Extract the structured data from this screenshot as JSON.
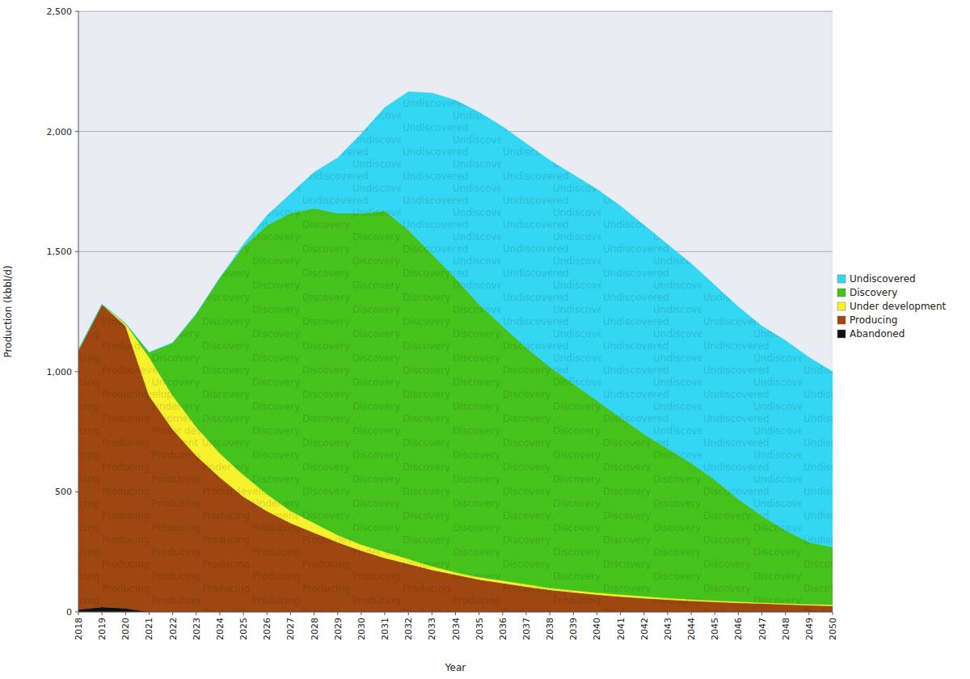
{
  "chart_data": {
    "type": "area",
    "stacked": true,
    "grid": true,
    "legend": "right",
    "x_label": "Year",
    "y_label": "Production (kbbl/d)",
    "x": [
      2018,
      2019,
      2020,
      2021,
      2022,
      2023,
      2024,
      2025,
      2026,
      2027,
      2028,
      2029,
      2030,
      2031,
      2032,
      2033,
      2034,
      2035,
      2036,
      2037,
      2038,
      2039,
      2040,
      2041,
      2042,
      2043,
      2044,
      2045,
      2046,
      2047,
      2048,
      2049,
      2050
    ],
    "xlim": [
      2018,
      2050
    ],
    "xticks": [
      2018,
      2019,
      2020,
      2021,
      2022,
      2023,
      2024,
      2025,
      2026,
      2027,
      2028,
      2029,
      2030,
      2031,
      2032,
      2033,
      2034,
      2035,
      2036,
      2037,
      2038,
      2039,
      2040,
      2041,
      2042,
      2043,
      2044,
      2045,
      2046,
      2047,
      2048,
      2049,
      2050
    ],
    "ylim": [
      0,
      2500
    ],
    "yticks": [
      0,
      500,
      {
        "value": 1000,
        "label": "1,000"
      },
      {
        "value": 1500,
        "label": "1,500"
      },
      {
        "value": 2000,
        "label": "2,000"
      },
      {
        "value": 2500,
        "label": "2,500"
      }
    ],
    "series": [
      {
        "name": "Abandoned",
        "color": "#111111",
        "values": [
          10,
          20,
          15,
          0,
          0,
          0,
          0,
          0,
          0,
          0,
          0,
          0,
          0,
          0,
          0,
          0,
          0,
          0,
          0,
          0,
          0,
          0,
          0,
          0,
          0,
          0,
          0,
          0,
          0,
          0,
          0,
          0,
          0
        ]
      },
      {
        "name": "Producing",
        "color": "#9e4710",
        "values": [
          1080,
          1260,
          1175,
          900,
          760,
          650,
          560,
          480,
          420,
          370,
          330,
          290,
          255,
          225,
          200,
          175,
          155,
          135,
          120,
          105,
          92,
          82,
          72,
          64,
          57,
          51,
          46,
          42,
          38,
          35,
          31,
          28,
          25
        ]
      },
      {
        "name": "Under development",
        "color": "#f8f22c",
        "values": [
          0,
          0,
          10,
          160,
          140,
          120,
          100,
          90,
          70,
          50,
          40,
          30,
          25,
          25,
          20,
          15,
          10,
          10,
          10,
          10,
          8,
          8,
          8,
          8,
          8,
          7,
          6,
          5,
          5,
          4,
          4,
          4,
          5
        ]
      },
      {
        "name": "Discovery",
        "color": "#45c21c",
        "values": [
          0,
          0,
          0,
          20,
          220,
          470,
          730,
          950,
          1120,
          1240,
          1310,
          1340,
          1380,
          1420,
          1370,
          1300,
          1225,
          1135,
          1060,
          985,
          920,
          860,
          800,
          738,
          675,
          622,
          568,
          503,
          427,
          361,
          305,
          258,
          240
        ]
      },
      {
        "name": "Undiscovered",
        "color": "#33d7f3",
        "values": [
          0,
          0,
          0,
          0,
          0,
          0,
          0,
          10,
          40,
          80,
          150,
          230,
          330,
          430,
          575,
          670,
          740,
          800,
          830,
          850,
          860,
          870,
          880,
          880,
          870,
          850,
          830,
          810,
          800,
          790,
          790,
          770,
          730
        ]
      }
    ]
  }
}
